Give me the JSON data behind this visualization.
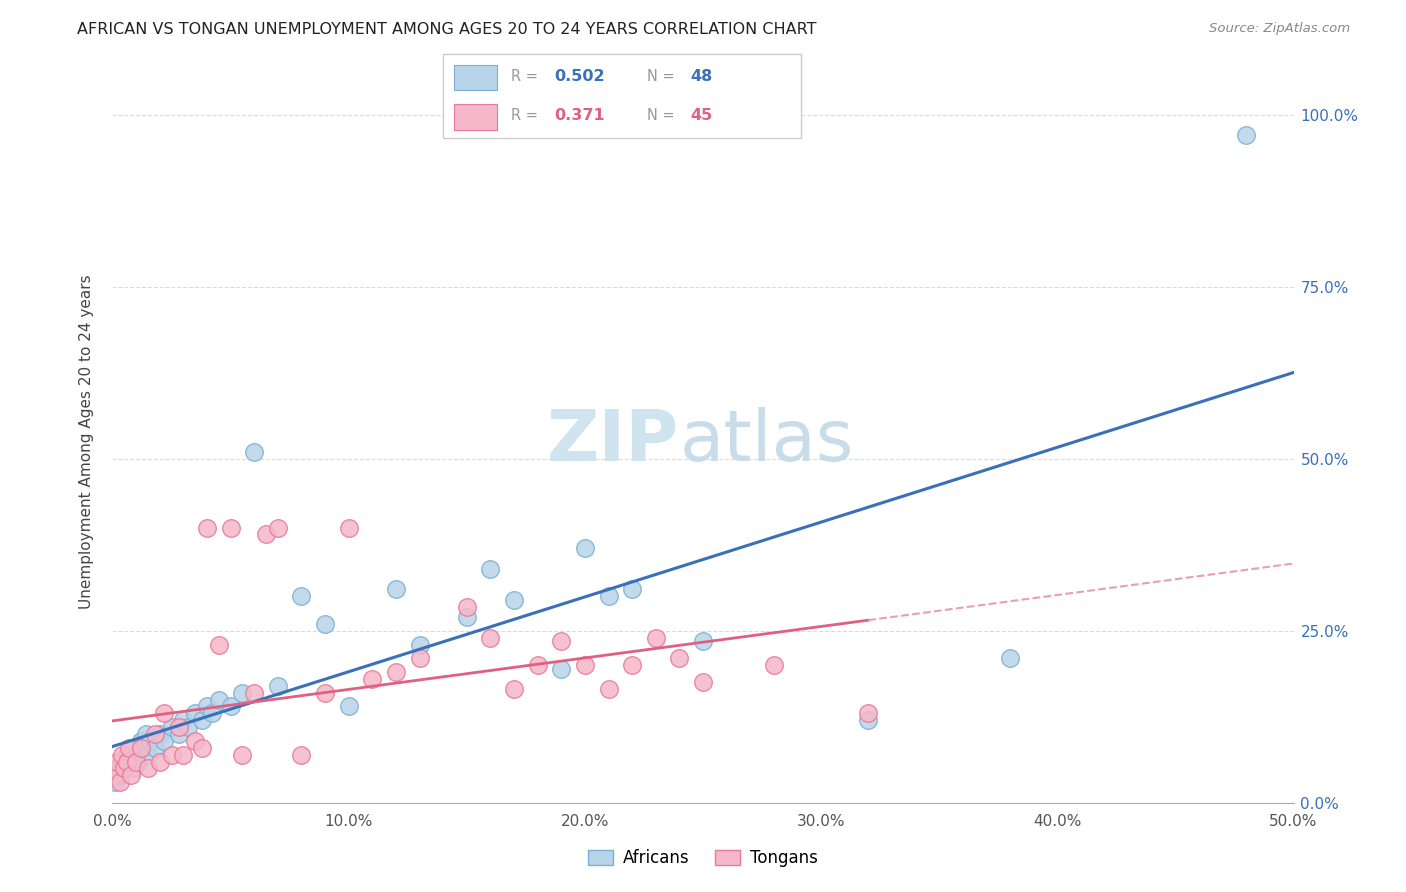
{
  "title": "AFRICAN VS TONGAN UNEMPLOYMENT AMONG AGES 20 TO 24 YEARS CORRELATION CHART",
  "source": "Source: ZipAtlas.com",
  "ylabel": "Unemployment Among Ages 20 to 24 years",
  "xlim": [
    0.0,
    0.5
  ],
  "ylim": [
    0.0,
    1.05
  ],
  "xtick_labels": [
    "0.0%",
    "10.0%",
    "20.0%",
    "30.0%",
    "40.0%",
    "50.0%"
  ],
  "xtick_vals": [
    0.0,
    0.1,
    0.2,
    0.3,
    0.4,
    0.5
  ],
  "ytick_vals": [
    0.0,
    0.25,
    0.5,
    0.75,
    1.0
  ],
  "ytick_labels_right": [
    "0.0%",
    "25.0%",
    "50.0%",
    "75.0%",
    "100.0%"
  ],
  "legend_r_african": "0.502",
  "legend_n_african": "48",
  "legend_r_tongan": "0.371",
  "legend_n_tongan": "45",
  "african_dot_color": "#b8d4e8",
  "african_edge_color": "#7ab0d4",
  "tongan_dot_color": "#f5b8ca",
  "tongan_edge_color": "#e87898",
  "african_line_color": "#3a6fba",
  "tongan_line_color": "#e06080",
  "tongan_dash_color": "#e8a0b0",
  "watermark_zip_color": "#d0e4f0",
  "watermark_atlas_color": "#c8dcea",
  "african_x": [
    0.001,
    0.002,
    0.003,
    0.004,
    0.005,
    0.006,
    0.007,
    0.008,
    0.009,
    0.01,
    0.011,
    0.012,
    0.013,
    0.014,
    0.015,
    0.016,
    0.018,
    0.02,
    0.022,
    0.025,
    0.028,
    0.03,
    0.032,
    0.035,
    0.038,
    0.04,
    0.042,
    0.045,
    0.05,
    0.055,
    0.06,
    0.07,
    0.08,
    0.09,
    0.1,
    0.12,
    0.13,
    0.15,
    0.16,
    0.17,
    0.19,
    0.2,
    0.21,
    0.22,
    0.25,
    0.32,
    0.38,
    0.48
  ],
  "african_y": [
    0.03,
    0.05,
    0.04,
    0.06,
    0.055,
    0.07,
    0.06,
    0.08,
    0.05,
    0.07,
    0.06,
    0.09,
    0.08,
    0.1,
    0.07,
    0.09,
    0.08,
    0.1,
    0.09,
    0.11,
    0.1,
    0.12,
    0.11,
    0.13,
    0.12,
    0.14,
    0.13,
    0.15,
    0.14,
    0.16,
    0.51,
    0.17,
    0.3,
    0.26,
    0.14,
    0.31,
    0.23,
    0.27,
    0.34,
    0.295,
    0.195,
    0.37,
    0.3,
    0.31,
    0.235,
    0.12,
    0.21,
    0.97
  ],
  "tongan_x": [
    0.001,
    0.002,
    0.003,
    0.004,
    0.005,
    0.006,
    0.007,
    0.008,
    0.01,
    0.012,
    0.015,
    0.018,
    0.02,
    0.022,
    0.025,
    0.028,
    0.03,
    0.035,
    0.038,
    0.04,
    0.045,
    0.05,
    0.055,
    0.06,
    0.065,
    0.07,
    0.08,
    0.09,
    0.1,
    0.11,
    0.12,
    0.13,
    0.15,
    0.16,
    0.17,
    0.18,
    0.19,
    0.2,
    0.21,
    0.22,
    0.23,
    0.24,
    0.25,
    0.28,
    0.32
  ],
  "tongan_y": [
    0.04,
    0.06,
    0.03,
    0.07,
    0.05,
    0.06,
    0.08,
    0.04,
    0.06,
    0.08,
    0.05,
    0.1,
    0.06,
    0.13,
    0.07,
    0.11,
    0.07,
    0.09,
    0.08,
    0.4,
    0.23,
    0.4,
    0.07,
    0.16,
    0.39,
    0.4,
    0.07,
    0.16,
    0.4,
    0.18,
    0.19,
    0.21,
    0.285,
    0.24,
    0.165,
    0.2,
    0.235,
    0.2,
    0.165,
    0.2,
    0.24,
    0.21,
    0.175,
    0.2,
    0.13
  ]
}
